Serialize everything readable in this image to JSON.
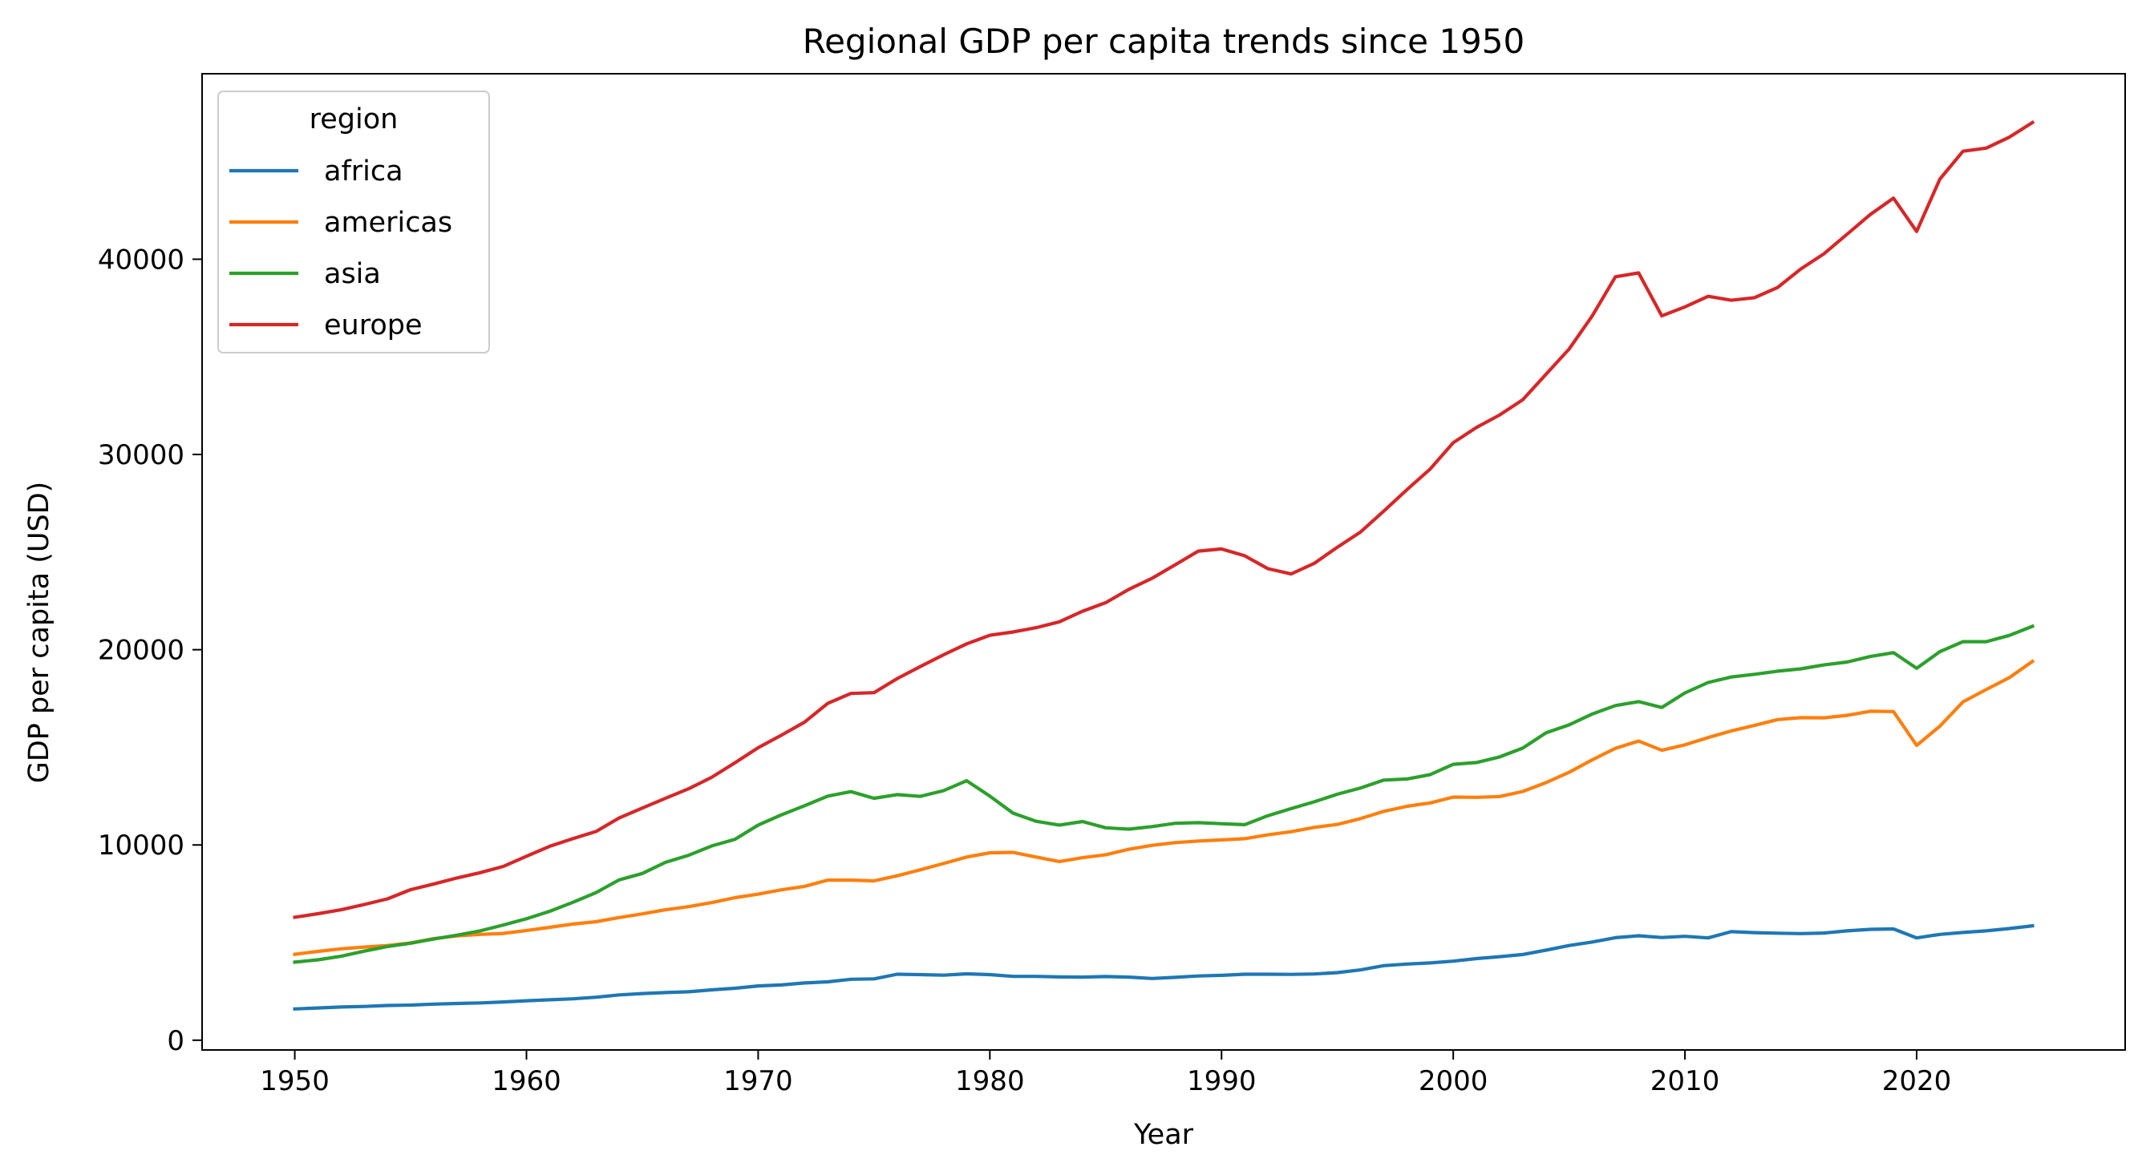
{
  "chart_data": {
    "type": "line",
    "title": "Regional GDP per capita trends since 1950",
    "xlabel": "Year",
    "ylabel": "GDP per capita (USD)",
    "xlim": [
      1946,
      2029
    ],
    "ylim": [
      -500,
      49500
    ],
    "x_ticks": [
      1950,
      1960,
      1970,
      1980,
      1990,
      2000,
      2010,
      2020
    ],
    "y_ticks": [
      0,
      10000,
      20000,
      30000,
      40000
    ],
    "grid": false,
    "legend": {
      "title": "region",
      "placement": "top-left"
    },
    "x": [
      1950,
      1951,
      1952,
      1953,
      1954,
      1955,
      1956,
      1957,
      1958,
      1959,
      1960,
      1961,
      1962,
      1963,
      1964,
      1965,
      1966,
      1967,
      1968,
      1969,
      1970,
      1971,
      1972,
      1973,
      1974,
      1975,
      1976,
      1977,
      1978,
      1979,
      1980,
      1981,
      1982,
      1983,
      1984,
      1985,
      1986,
      1987,
      1988,
      1989,
      1990,
      1991,
      1992,
      1993,
      1994,
      1995,
      1996,
      1997,
      1998,
      1999,
      2000,
      2001,
      2002,
      2003,
      2004,
      2005,
      2006,
      2007,
      2008,
      2009,
      2010,
      2011,
      2012,
      2013,
      2014,
      2015,
      2016,
      2017,
      2018,
      2019,
      2020,
      2021,
      2022,
      2023,
      2024,
      2025
    ],
    "series": [
      {
        "name": "africa",
        "color": "#1f77b4",
        "values": [
          1600,
          1650,
          1700,
          1730,
          1780,
          1800,
          1850,
          1880,
          1910,
          1960,
          2020,
          2070,
          2120,
          2200,
          2320,
          2390,
          2440,
          2480,
          2580,
          2660,
          2780,
          2830,
          2930,
          2990,
          3120,
          3140,
          3380,
          3360,
          3330,
          3400,
          3360,
          3270,
          3270,
          3240,
          3230,
          3260,
          3230,
          3160,
          3220,
          3290,
          3320,
          3380,
          3380,
          3370,
          3390,
          3460,
          3600,
          3820,
          3900,
          3960,
          4050,
          4180,
          4280,
          4390,
          4610,
          4850,
          5030,
          5250,
          5350,
          5260,
          5320,
          5240,
          5560,
          5510,
          5480,
          5460,
          5490,
          5600,
          5680,
          5700,
          5240,
          5420,
          5520,
          5600,
          5720,
          5860
        ]
      },
      {
        "name": "americas",
        "color": "#ff7f0e",
        "values": [
          4400,
          4550,
          4680,
          4770,
          4850,
          4980,
          5200,
          5340,
          5420,
          5470,
          5620,
          5780,
          5950,
          6070,
          6280,
          6470,
          6680,
          6840,
          7050,
          7300,
          7480,
          7700,
          7880,
          8200,
          8200,
          8160,
          8420,
          8730,
          9050,
          9380,
          9600,
          9620,
          9380,
          9150,
          9350,
          9500,
          9780,
          9980,
          10120,
          10200,
          10260,
          10320,
          10520,
          10680,
          10900,
          11050,
          11350,
          11720,
          11980,
          12150,
          12450,
          12440,
          12480,
          12740,
          13190,
          13720,
          14360,
          14950,
          15320,
          14850,
          15130,
          15500,
          15840,
          16120,
          16420,
          16520,
          16510,
          16640,
          16850,
          16830,
          15100,
          16080,
          17330,
          17960,
          18570,
          19400
        ]
      },
      {
        "name": "asia",
        "color": "#2ca02c",
        "values": [
          4000,
          4120,
          4300,
          4560,
          4800,
          4970,
          5180,
          5380,
          5600,
          5900,
          6220,
          6600,
          7060,
          7560,
          8210,
          8540,
          9110,
          9470,
          9950,
          10290,
          11020,
          11540,
          12010,
          12500,
          12730,
          12390,
          12580,
          12490,
          12780,
          13290,
          12500,
          11630,
          11210,
          11020,
          11200,
          10880,
          10810,
          10940,
          11110,
          11140,
          11090,
          11040,
          11500,
          11860,
          12210,
          12600,
          12920,
          13320,
          13380,
          13600,
          14130,
          14220,
          14510,
          14960,
          15740,
          16150,
          16710,
          17140,
          17340,
          17040,
          17790,
          18320,
          18600,
          18740,
          18900,
          19020,
          19220,
          19370,
          19650,
          19850,
          19050,
          19900,
          20410,
          20410,
          20730,
          21200
        ]
      },
      {
        "name": "europe",
        "color": "#d62728",
        "values": [
          6300,
          6480,
          6680,
          6950,
          7240,
          7710,
          8000,
          8310,
          8580,
          8900,
          9420,
          9930,
          10320,
          10690,
          11380,
          11890,
          12390,
          12880,
          13470,
          14210,
          14980,
          15620,
          16290,
          17250,
          17760,
          17800,
          18520,
          19140,
          19740,
          20300,
          20740,
          20910,
          21130,
          21430,
          21970,
          22410,
          23090,
          23660,
          24350,
          25050,
          25160,
          24810,
          24150,
          23880,
          24420,
          25250,
          26030,
          27100,
          28200,
          29250,
          30600,
          31380,
          32020,
          32800,
          34100,
          35400,
          37100,
          39100,
          39300,
          37100,
          37560,
          38100,
          37900,
          38030,
          38550,
          39500,
          40280,
          41280,
          42290,
          43130,
          41420,
          44100,
          45530,
          45690,
          46250,
          47000
        ]
      }
    ]
  }
}
